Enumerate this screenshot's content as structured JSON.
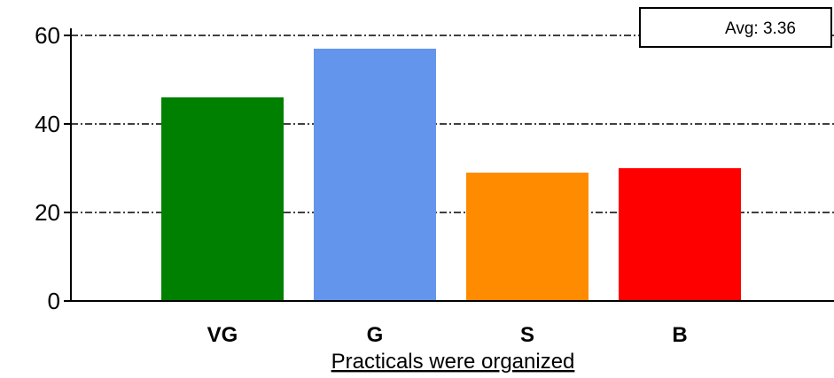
{
  "chart_data": {
    "type": "bar",
    "categories": [
      "VG",
      "G",
      "S",
      "B"
    ],
    "values": [
      46,
      57,
      29,
      30
    ],
    "colors": [
      "#008000",
      "#6495ED",
      "#FF8C00",
      "#FF0000"
    ],
    "title": "",
    "xlabel": "Practicals were organized",
    "ylabel": "",
    "ylim": [
      0,
      60
    ],
    "yticks": [
      0,
      20,
      40,
      60
    ],
    "grid": true,
    "annotation": "Avg: 3.36",
    "annotation_position": "top-right"
  }
}
